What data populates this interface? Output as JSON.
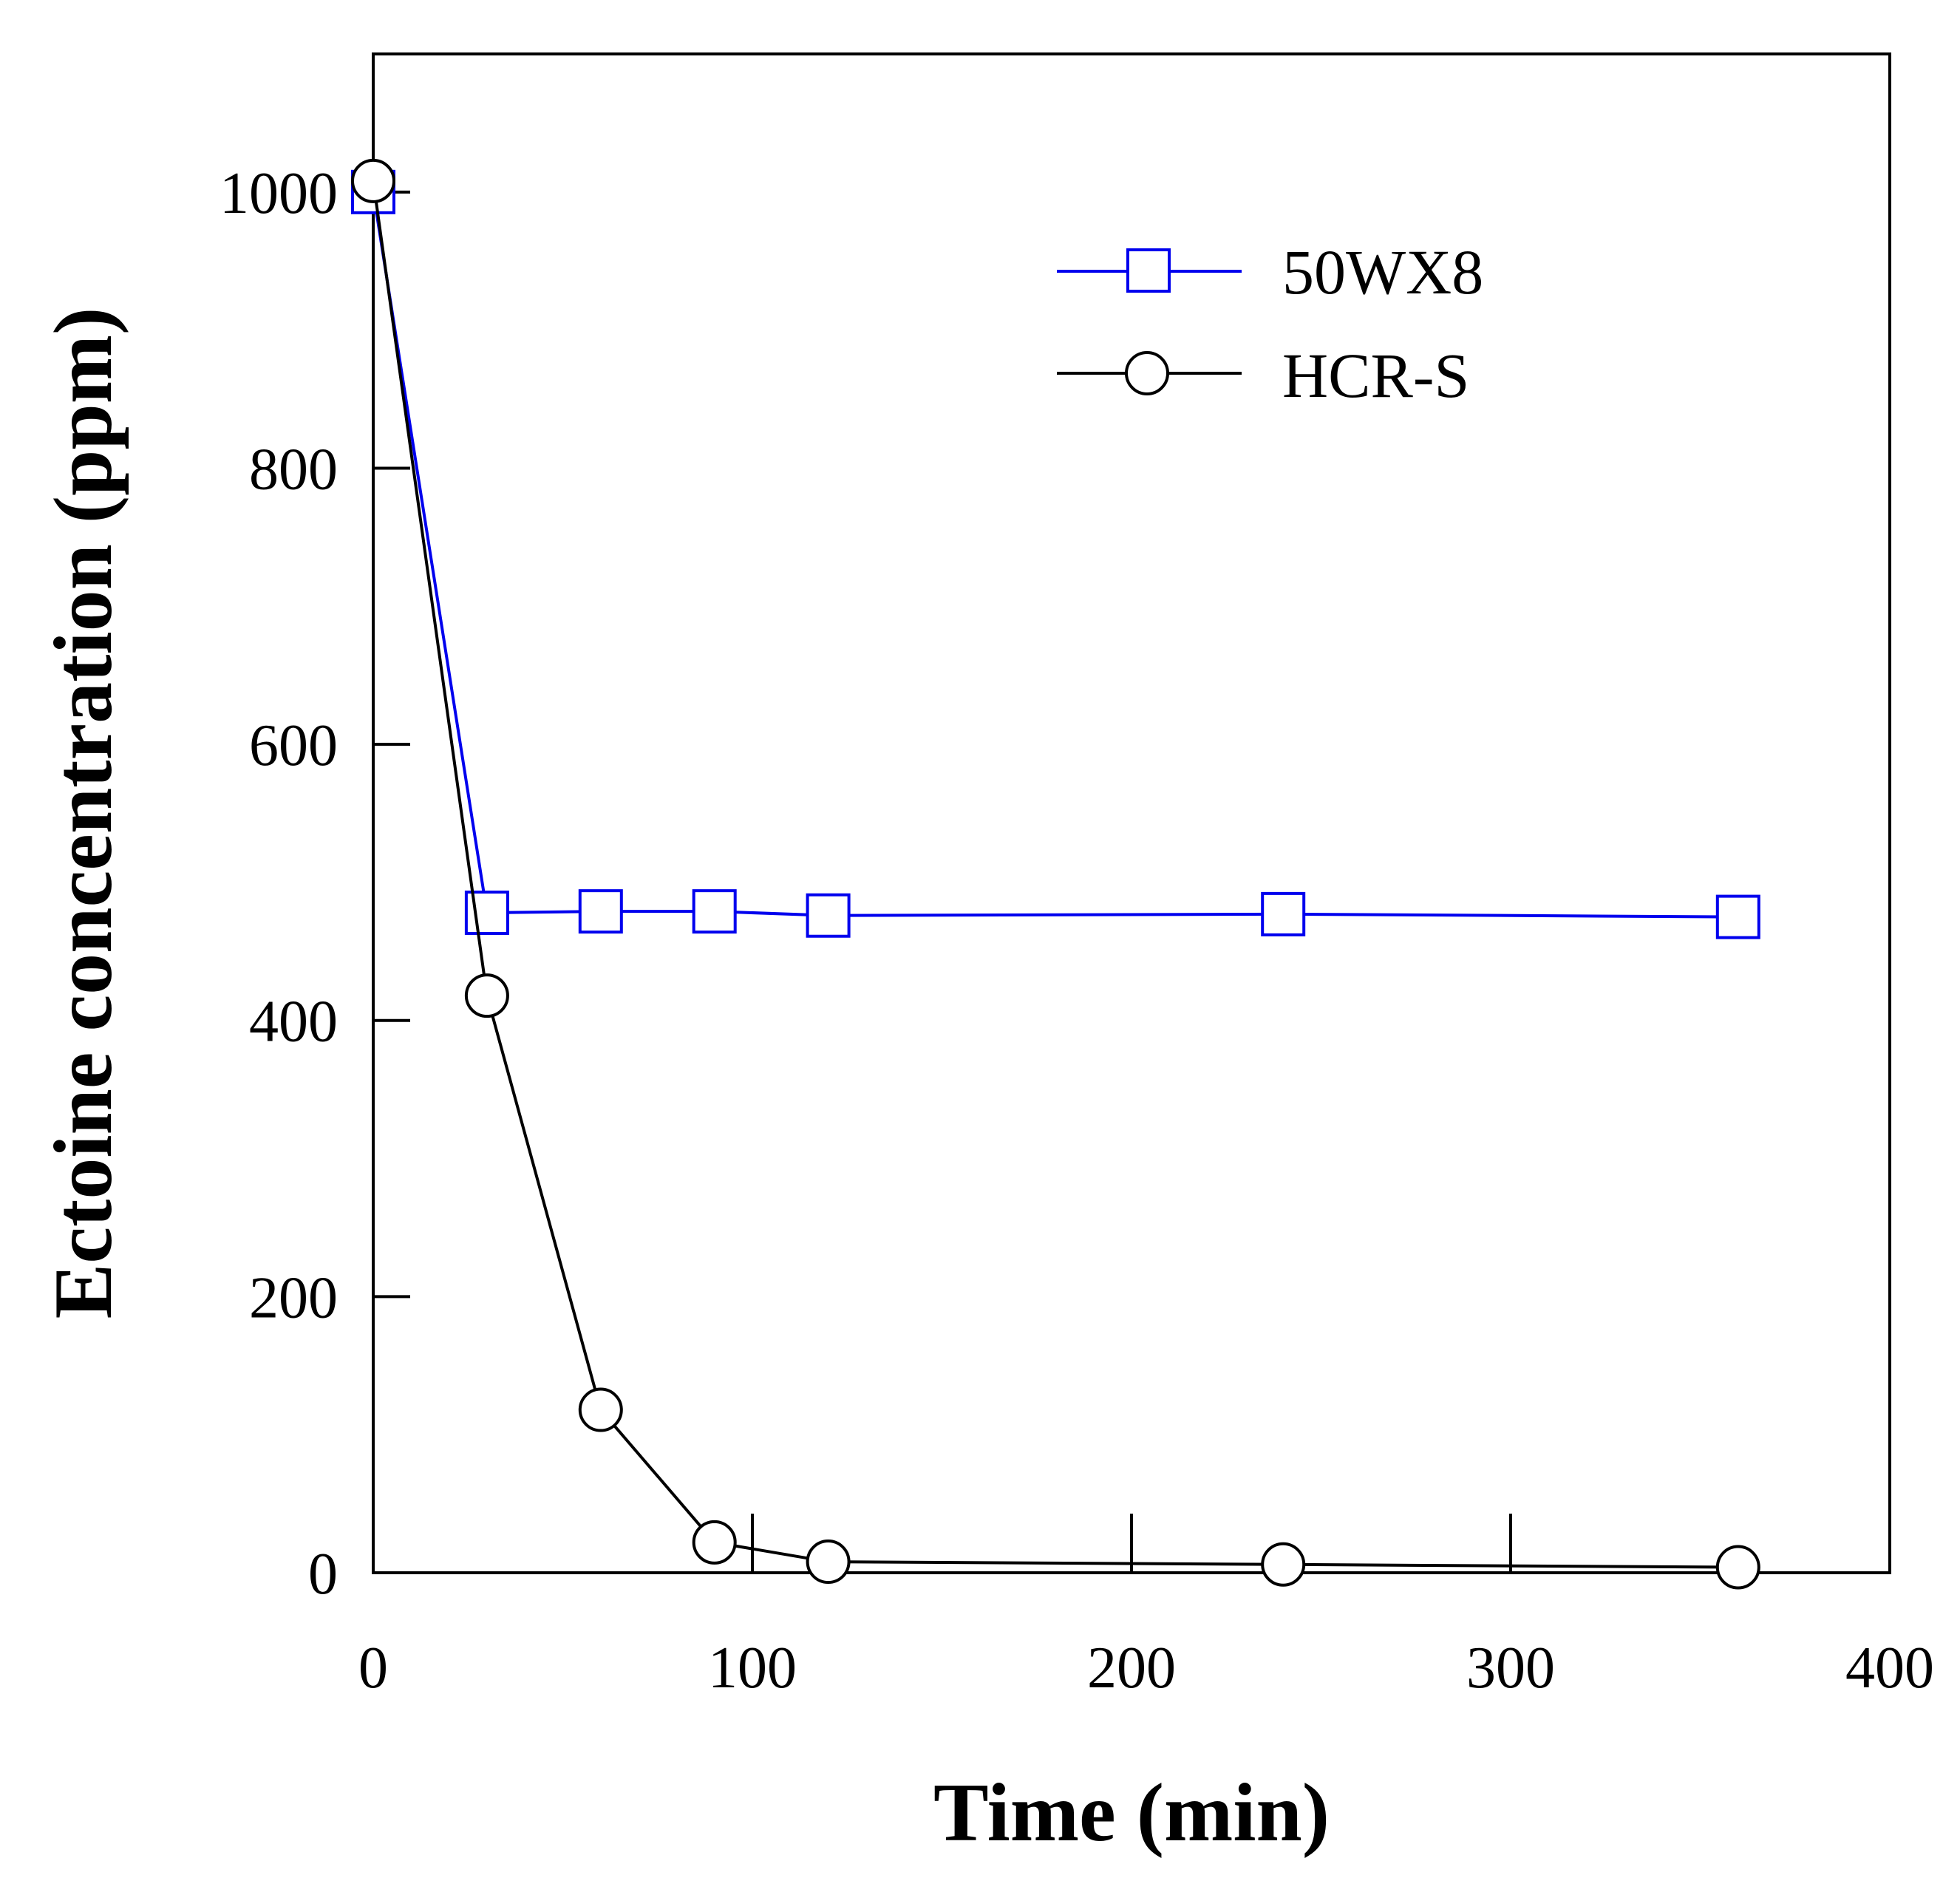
{
  "chart_data": {
    "type": "line",
    "title": "",
    "xlabel": "Time (min)",
    "ylabel": "Ectoine concentration (ppm)",
    "xlim": [
      0,
      400
    ],
    "ylim": [
      0,
      1100
    ],
    "x_ticks": [
      0,
      100,
      200,
      300,
      400
    ],
    "y_ticks": [
      0,
      200,
      400,
      600,
      800,
      1000
    ],
    "grid": false,
    "legend_position": "top-right",
    "series": [
      {
        "name": "50WX8",
        "color": "#0000ee",
        "marker": "square",
        "x": [
          0,
          30,
          60,
          90,
          120,
          240,
          360
        ],
        "y": [
          1000,
          478,
          479,
          479,
          476,
          477,
          475
        ]
      },
      {
        "name": "HCR-S",
        "color": "#000000",
        "marker": "circle",
        "x": [
          0,
          30,
          60,
          90,
          120,
          240,
          360
        ],
        "y": [
          1008,
          418,
          118,
          22,
          8,
          6,
          4
        ]
      }
    ]
  }
}
